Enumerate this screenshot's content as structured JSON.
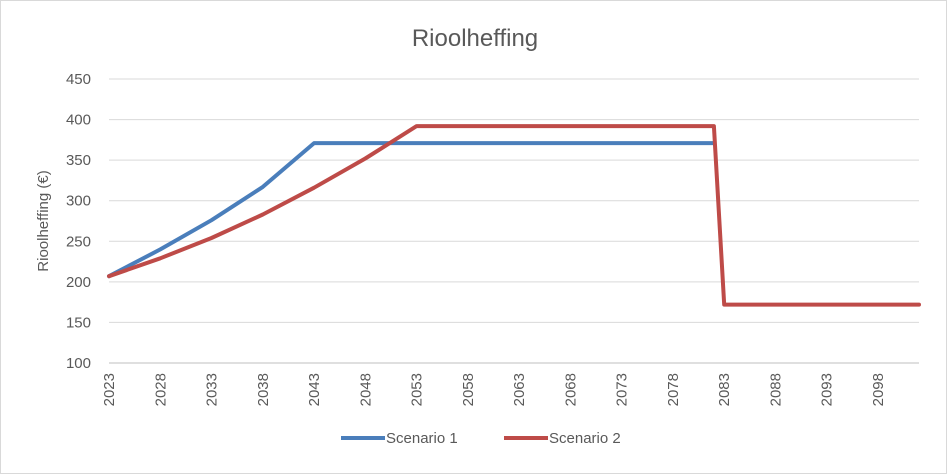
{
  "chart_data": {
    "type": "line",
    "title": "Rioolheffing",
    "xlabel": "",
    "ylabel": "Rioolheffing (€)",
    "ylim": [
      100,
      450
    ],
    "yticks": [
      100,
      150,
      200,
      250,
      300,
      350,
      400,
      450
    ],
    "xlim": [
      2023,
      2102
    ],
    "xticks": [
      2023,
      2028,
      2033,
      2038,
      2043,
      2048,
      2053,
      2058,
      2063,
      2068,
      2073,
      2078,
      2083,
      2088,
      2093,
      2098
    ],
    "grid": true,
    "legend_position": "bottom",
    "series": [
      {
        "name": "Scenario 1",
        "color": "#4a7ebb",
        "points": [
          [
            2023,
            207
          ],
          [
            2028,
            240
          ],
          [
            2033,
            276
          ],
          [
            2038,
            317
          ],
          [
            2043,
            371
          ],
          [
            2082,
            371
          ]
        ]
      },
      {
        "name": "Scenario 2",
        "color": "#be4b48",
        "points": [
          [
            2023,
            207
          ],
          [
            2028,
            229
          ],
          [
            2033,
            254
          ],
          [
            2038,
            283
          ],
          [
            2043,
            316
          ],
          [
            2048,
            352
          ],
          [
            2053,
            392
          ],
          [
            2082,
            392
          ],
          [
            2083,
            172
          ],
          [
            2102,
            172
          ]
        ]
      }
    ]
  }
}
